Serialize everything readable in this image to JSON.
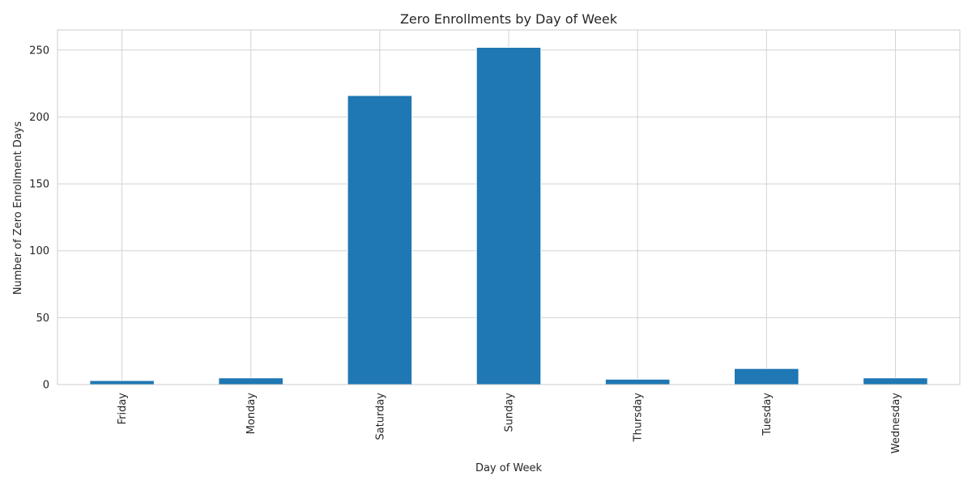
{
  "chart_data": {
    "type": "bar",
    "title": "Zero Enrollments by Day of Week",
    "xlabel": "Day of Week",
    "ylabel": "Number of Zero Enrollment Days",
    "categories": [
      "Friday",
      "Monday",
      "Saturday",
      "Sunday",
      "Thursday",
      "Tuesday",
      "Wednesday"
    ],
    "values": [
      3,
      5,
      216,
      252,
      4,
      12,
      5
    ],
    "ylim": [
      0,
      265
    ],
    "yticks": [
      0,
      50,
      100,
      150,
      200,
      250
    ],
    "grid": true,
    "bar_color": "#1f77b4",
    "grid_color": "#d3d3d3",
    "axis_color": "#cccccc"
  }
}
